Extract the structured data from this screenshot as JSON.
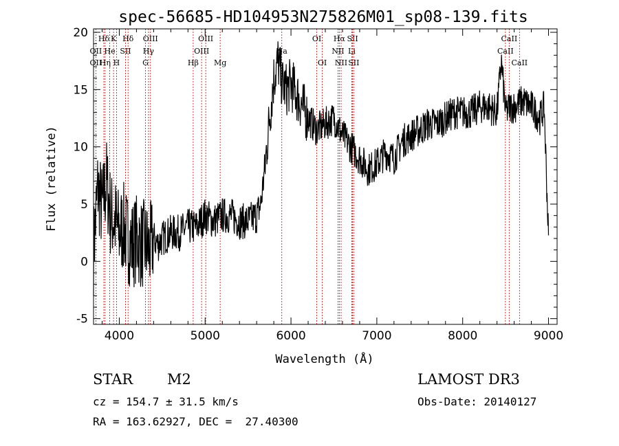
{
  "title": "spec-56685-HD104953N275826M01_sp08-139.fits",
  "chart_data": {
    "type": "line",
    "title": "spec-56685-HD104953N275826M01_sp08-139.fits",
    "xlabel": "Wavelength (Å)",
    "ylabel": "Flux (relative)",
    "xlim": [
      3700,
      9100
    ],
    "ylim": [
      -5.5,
      20.3
    ],
    "x_ticks": [
      4000,
      5000,
      6000,
      7000,
      8000,
      9000
    ],
    "y_ticks": [
      -5,
      0,
      5,
      10,
      15,
      20
    ],
    "grid": false,
    "line_color": "#000000",
    "marker_color": "#cc0000",
    "series": [
      {
        "x": [
          3700,
          3750,
          3800,
          3850,
          3900,
          3950,
          4000,
          4050,
          4100,
          4150,
          4200,
          4250,
          4300,
          4350,
          4400,
          4450,
          4500,
          4600,
          4700,
          4800,
          4900,
          5000,
          5100,
          5200,
          5300,
          5400,
          5500,
          5600,
          5650,
          5700,
          5750,
          5800,
          5850,
          5900,
          5950,
          6000,
          6100,
          6200,
          6300,
          6400,
          6500,
          6600,
          6700,
          6750,
          6800,
          6900,
          7000,
          7100,
          7200,
          7300,
          7400,
          7500,
          7600,
          7700,
          7800,
          7900,
          8000,
          8100,
          8200,
          8300,
          8400,
          8450,
          8500,
          8550,
          8600,
          8700,
          8800,
          8900,
          8950,
          9000
        ],
        "y": [
          1.0,
          6.5,
          4.5,
          7.0,
          4.0,
          3.5,
          2.5,
          3.0,
          2.0,
          1.5,
          2.0,
          1.5,
          1.5,
          1.0,
          2.0,
          1.5,
          2.0,
          2.5,
          2.5,
          3.0,
          3.0,
          4.0,
          3.5,
          4.0,
          4.0,
          3.5,
          3.5,
          4.0,
          5.0,
          8.5,
          12.5,
          16.0,
          17.5,
          15.5,
          15.0,
          15.5,
          14.0,
          12.5,
          11.5,
          12.0,
          12.5,
          11.0,
          10.0,
          9.5,
          9.0,
          8.0,
          8.5,
          9.5,
          9.0,
          10.5,
          11.0,
          11.5,
          12.0,
          12.0,
          12.5,
          13.0,
          13.0,
          13.0,
          13.5,
          13.5,
          13.0,
          17.5,
          13.0,
          13.5,
          13.5,
          14.0,
          13.5,
          12.5,
          13.5,
          2.0
        ]
      }
    ],
    "spectral_lines": [
      {
        "name": "Hδ",
        "wavelength": 3820,
        "row": 1
      },
      {
        "name": "K",
        "wavelength": 3933,
        "row": 1
      },
      {
        "name": "Hδ",
        "wavelength": 4102,
        "row": 1
      },
      {
        "name": "OIII",
        "wavelength": 4363,
        "row": 1
      },
      {
        "name": "OIII",
        "wavelength": 5007,
        "row": 1
      },
      {
        "name": "OI",
        "wavelength": 6300,
        "row": 1
      },
      {
        "name": "Hα",
        "wavelength": 6563,
        "row": 1
      },
      {
        "name": "SII",
        "wavelength": 6717,
        "row": 1
      },
      {
        "name": "CaII",
        "wavelength": 8542,
        "row": 1
      },
      {
        "name": "OII",
        "wavelength": 3727,
        "row": 2
      },
      {
        "name": "He",
        "wavelength": 3889,
        "row": 2
      },
      {
        "name": "SII",
        "wavelength": 4072,
        "row": 2
      },
      {
        "name": "Hγ",
        "wavelength": 4340,
        "row": 2
      },
      {
        "name": "OIII",
        "wavelength": 4959,
        "row": 2
      },
      {
        "name": "Na",
        "wavelength": 5893,
        "row": 2
      },
      {
        "name": "NII",
        "wavelength": 6548,
        "row": 2
      },
      {
        "name": "Li",
        "wavelength": 6708,
        "row": 2
      },
      {
        "name": "CaII",
        "wavelength": 8498,
        "row": 2
      },
      {
        "name": "OII",
        "wavelength": 3727,
        "row": 3
      },
      {
        "name": "Hη",
        "wavelength": 3835,
        "row": 3
      },
      {
        "name": "H",
        "wavelength": 3968,
        "row": 3
      },
      {
        "name": "G",
        "wavelength": 4305,
        "row": 3
      },
      {
        "name": "Hβ",
        "wavelength": 4861,
        "row": 3
      },
      {
        "name": "Mg",
        "wavelength": 5175,
        "row": 3
      },
      {
        "name": "OI",
        "wavelength": 6364,
        "row": 3
      },
      {
        "name": "NII",
        "wavelength": 6584,
        "row": 3
      },
      {
        "name": "SII",
        "wavelength": 6731,
        "row": 3
      },
      {
        "name": "CaII",
        "wavelength": 8662,
        "row": 3
      }
    ]
  },
  "info": {
    "class_label": "STAR",
    "subclass": "M2",
    "survey": "LAMOST DR3",
    "redshift": "cz = 154.7 ± 31.5 km/s",
    "obs_date": "Obs-Date: 20140127",
    "coords": "RA = 163.62927, DEC =  27.40300"
  }
}
